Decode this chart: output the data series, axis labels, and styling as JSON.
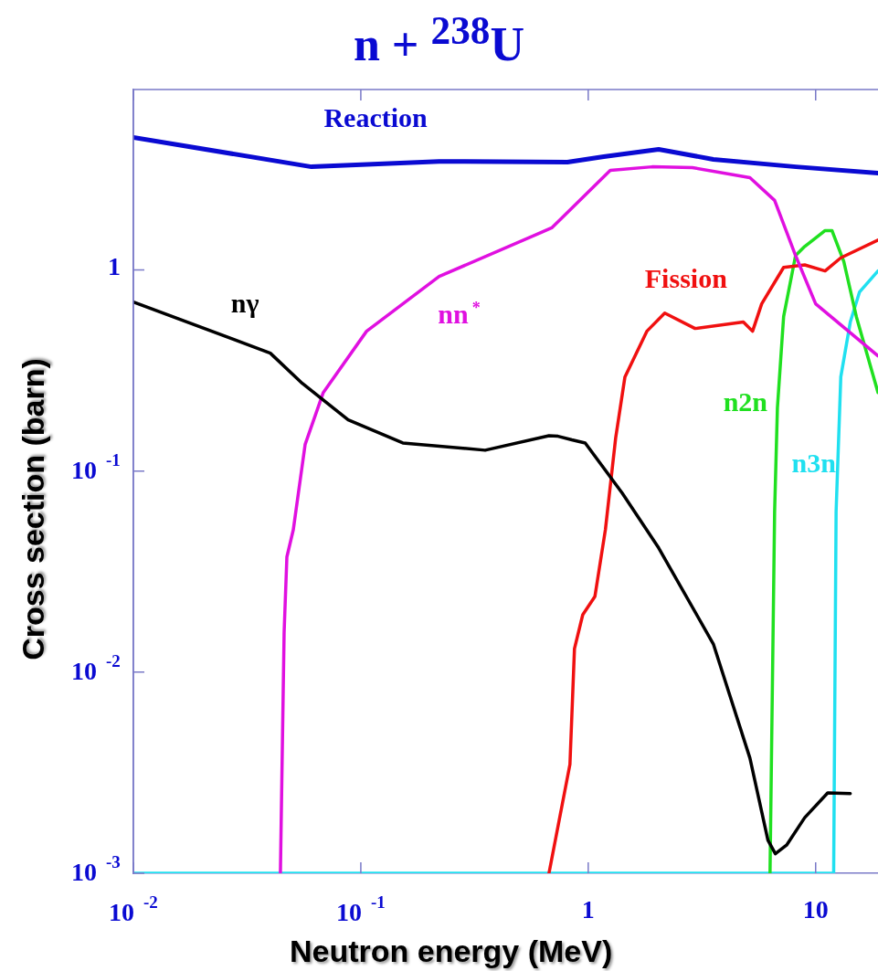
{
  "chart_data": {
    "type": "line",
    "title": "n + $^{238}$U",
    "xlabel": "Neutron energy (MeV)",
    "ylabel": "Cross section (barn)",
    "log": "xy",
    "grid": false,
    "legend": false,
    "marker": "none",
    "line_style": "solid",
    "xlim": [
      0.01,
      18.8
    ],
    "ylim": [
      0.001,
      7.9
    ],
    "xticks": [
      {
        "value": 0.01,
        "label": "10$^{-2}$"
      },
      {
        "value": 0.1,
        "label": "10$^{-1}$"
      },
      1,
      10
    ],
    "yticks": [
      {
        "value": 0.001,
        "label": "10$^{-3}$"
      },
      {
        "value": 0.01,
        "label": "10$^{-2}$"
      },
      {
        "value": 0.1,
        "label": "10$^{-1}$"
      },
      1
    ],
    "series": [
      {
        "name": "Reaction",
        "color": "#0a0ad2",
        "x": [
          0.01,
          0.0607,
          0.221,
          0.81,
          1.17,
          2.04,
          3.55,
          8.2,
          18.8
        ],
        "values": [
          4.56,
          3.26,
          3.47,
          3.44,
          3.66,
          3.98,
          3.55,
          3.26,
          3.03
        ]
      },
      {
        "name": "nγ",
        "color": "#000000",
        "x": [
          0.01,
          0.04,
          0.0553,
          0.088,
          0.153,
          0.352,
          0.672,
          0.737,
          0.847,
          0.97,
          1.41,
          2.04,
          3.55,
          5.14,
          6.17,
          6.65,
          7.45,
          8.95,
          11.3,
          14.2
        ],
        "values": [
          0.693,
          0.386,
          0.273,
          0.18,
          0.138,
          0.127,
          0.15,
          0.149,
          0.143,
          0.138,
          0.0778,
          0.0415,
          0.0138,
          0.00374,
          0.00146,
          0.00125,
          0.00138,
          0.00189,
          0.00251,
          0.00249
        ]
      },
      {
        "name": "nn$^{*}$",
        "color": "#e010e0",
        "x": [
          0.0443,
          0.046,
          0.0473,
          0.0505,
          0.0569,
          0.0684,
          0.106,
          0.221,
          0.691,
          1.25,
          1.91,
          2.87,
          5.14,
          6.6,
          8.16,
          10,
          18.8
        ],
        "values": [
          0.001,
          0.0157,
          0.0374,
          0.0512,
          0.1355,
          0.246,
          0.496,
          0.929,
          1.62,
          3.13,
          3.26,
          3.23,
          2.88,
          2.22,
          1.18,
          0.679,
          0.374
        ]
      },
      {
        "name": "Fission",
        "color": "#f01010",
        "x": [
          0.672,
          0.831,
          0.87,
          0.946,
          1.07,
          1.19,
          1.32,
          1.45,
          1.81,
          2.17,
          2.95,
          4.81,
          5.28,
          5.79,
          7.23,
          8.95,
          11.0,
          12.9,
          18.8
        ],
        "values": [
          0.001,
          0.00348,
          0.0131,
          0.0193,
          0.0238,
          0.0512,
          0.146,
          0.294,
          0.496,
          0.611,
          0.512,
          0.551,
          0.496,
          0.679,
          1.03,
          1.06,
          0.99,
          1.15,
          1.41
        ]
      },
      {
        "name": "n2n",
        "color": "#20e020",
        "x": [
          6.3,
          6.6,
          6.79,
          7.23,
          8.16,
          8.95,
          11.0,
          11.8,
          13.3,
          15.1,
          18.8
        ],
        "values": [
          0.001,
          0.063,
          0.206,
          0.586,
          1.18,
          1.31,
          1.57,
          1.57,
          1.1,
          0.586,
          0.246
        ]
      },
      {
        "name": "n3n",
        "color": "#20e0f0",
        "x": [
          0.01,
          12.0,
          12.3,
          12.9,
          14.2,
          15.6,
          18.8
        ],
        "values": [
          0.001,
          0.001,
          0.063,
          0.294,
          0.551,
          0.778,
          0.99
        ]
      }
    ]
  }
}
